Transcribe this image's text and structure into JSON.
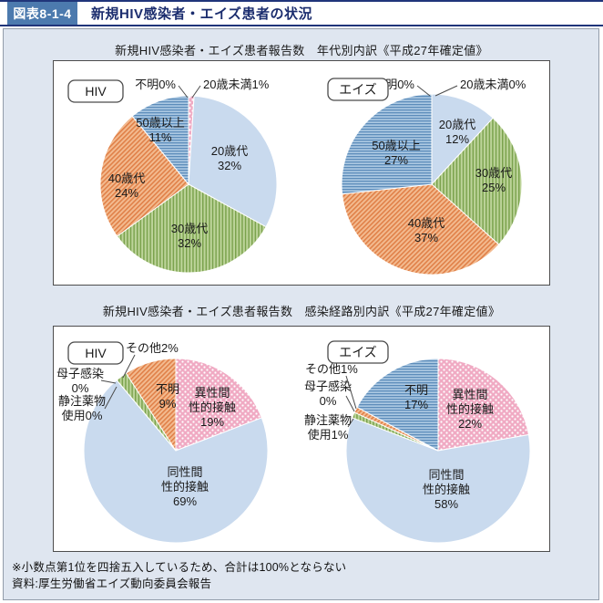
{
  "header": {
    "tag": "図表8-1-4",
    "title": "新規HIV感染者・エイズ患者の状況"
  },
  "panels": [
    {
      "title": "新規HIV感染者・エイズ患者報告数　年代別内訳《平成27年確定値》"
    },
    {
      "title": "新規HIV感染者・エイズ患者報告数　感染経路別内訳《平成27年確定値》"
    }
  ],
  "footnotes": [
    "※小数点第1位を四捨五入しているため、合計は100%とならない",
    "資料:厚生労働省エイズ動向委員会報告"
  ],
  "colors": {
    "header_navy": "#20357a",
    "header_tag_bg": "#4c7aae",
    "outer_bg": "#dfe6f0",
    "outer_border": "#939daa",
    "panel_border": "#4d4d4d",
    "blue_solid": "#c9daee",
    "pink": "#f0aac3",
    "dot_white": "#ffffff",
    "green_light": "#bdd49a",
    "green_dark": "#7aa24d",
    "orange_light": "#f3bb90",
    "orange_dark": "#e08048",
    "hblue_light": "#abc8e2",
    "hblue_dark": "#5c8cba",
    "leader_line": "#4a4a4a"
  },
  "chart_data": [
    {
      "type": "pie",
      "badge": "HIV",
      "title": "新規HIV感染者報告数 年代別内訳",
      "slices": [
        {
          "label": "20歳未満",
          "pct": 1,
          "style": "pink_dots",
          "lines": [
            "20歳未満1%"
          ]
        },
        {
          "label": "20歳代",
          "pct": 32,
          "style": "blue_solid",
          "lines": [
            "20歳代",
            "32%"
          ]
        },
        {
          "label": "30歳代",
          "pct": 32,
          "style": "green_vstripe",
          "lines": [
            "30歳代",
            "32%"
          ]
        },
        {
          "label": "40歳代",
          "pct": 24,
          "style": "orange_dstripe",
          "lines": [
            "40歳代",
            "24%"
          ]
        },
        {
          "label": "50歳以上",
          "pct": 11,
          "style": "blue_hstripe",
          "lines": [
            "50歳以上",
            "11%"
          ]
        },
        {
          "label": "不明",
          "pct": 0,
          "style": "none",
          "lines": [
            "不明0%"
          ]
        }
      ]
    },
    {
      "type": "pie",
      "badge": "エイズ",
      "title": "新規エイズ患者報告数 年代別内訳",
      "slices": [
        {
          "label": "20歳未満",
          "pct": 0,
          "style": "none",
          "lines": [
            "20歳未満0%"
          ]
        },
        {
          "label": "20歳代",
          "pct": 12,
          "style": "blue_solid",
          "lines": [
            "20歳代",
            "12%"
          ]
        },
        {
          "label": "30歳代",
          "pct": 25,
          "style": "green_vstripe",
          "lines": [
            "30歳代",
            "25%"
          ]
        },
        {
          "label": "40歳代",
          "pct": 37,
          "style": "orange_dstripe",
          "lines": [
            "40歳代",
            "37%"
          ]
        },
        {
          "label": "50歳以上",
          "pct": 27,
          "style": "blue_hstripe",
          "lines": [
            "50歳以上",
            "27%"
          ]
        },
        {
          "label": "不明",
          "pct": 0,
          "style": "none",
          "lines": [
            "不明0%"
          ]
        }
      ]
    },
    {
      "type": "pie",
      "badge": "HIV",
      "title": "新規HIV感染者報告数 感染経路別内訳",
      "slices": [
        {
          "label": "異性間性的接触",
          "pct": 19,
          "style": "pink_dots",
          "lines": [
            "異性間",
            "性的接触",
            "19%"
          ]
        },
        {
          "label": "同性間性的接触",
          "pct": 69,
          "style": "blue_solid",
          "lines": [
            "同性間",
            "性的接触",
            "69%"
          ]
        },
        {
          "label": "静注薬物使用",
          "pct": 0,
          "style": "none",
          "lines": [
            "静注薬物",
            "使用0%"
          ]
        },
        {
          "label": "母子感染",
          "pct": 0,
          "style": "none",
          "lines": [
            "母子感染",
            "0%"
          ]
        },
        {
          "label": "その他",
          "pct": 2,
          "style": "green_vstripe",
          "lines": [
            "その他2%"
          ]
        },
        {
          "label": "不明",
          "pct": 9,
          "style": "orange_dstripe",
          "lines": [
            "不明",
            "9%"
          ]
        }
      ]
    },
    {
      "type": "pie",
      "badge": "エイズ",
      "title": "新規エイズ患者報告数 感染経路別内訳",
      "slices": [
        {
          "label": "異性間性的接触",
          "pct": 22,
          "style": "pink_dots",
          "lines": [
            "異性間",
            "性的接触",
            "22%"
          ]
        },
        {
          "label": "同性間性的接触",
          "pct": 58,
          "style": "blue_solid",
          "lines": [
            "同性間",
            "性的接触",
            "58%"
          ]
        },
        {
          "label": "静注薬物使用",
          "pct": 1,
          "style": "green_vstripe",
          "lines": [
            "静注薬物",
            "使用1%"
          ]
        },
        {
          "label": "母子感染",
          "pct": 0,
          "style": "none",
          "lines": [
            "母子感染",
            "0%"
          ]
        },
        {
          "label": "その他",
          "pct": 1,
          "style": "orange_dstripe",
          "lines": [
            "その他1%"
          ]
        },
        {
          "label": "不明",
          "pct": 17,
          "style": "blue_hstripe",
          "lines": [
            "不明",
            "17%"
          ]
        }
      ]
    }
  ]
}
